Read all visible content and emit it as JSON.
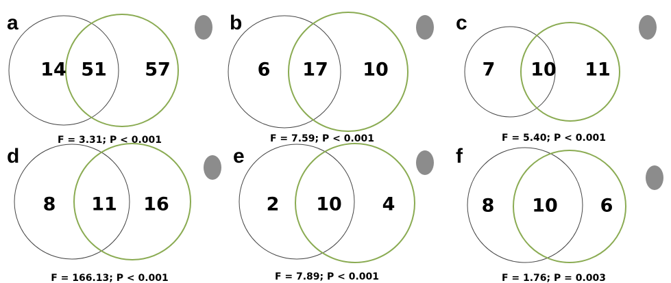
{
  "panels": [
    {
      "letter": "a",
      "left": "14",
      "both": "51",
      "right": "57",
      "stats": "F = 3.31; P < 0.001"
    },
    {
      "letter": "b",
      "left": "6",
      "both": "17",
      "right": "10",
      "stats": "F = 7.59; P < 0.001"
    },
    {
      "letter": "c",
      "left": "7",
      "both": "10",
      "right": "11",
      "stats": "F = 5.40; P < 0.001"
    },
    {
      "letter": "d",
      "left": "8",
      "both": "11",
      "right": "16",
      "stats": "F = 166.13; P < 0.001"
    },
    {
      "letter": "e",
      "left": "2",
      "both": "10",
      "right": "4",
      "stats": "F = 7.89; P < 0.001"
    },
    {
      "letter": "f",
      "left": "8",
      "both": "10",
      "right": "6",
      "stats": "F = 1.76; P = 0.003"
    }
  ]
}
